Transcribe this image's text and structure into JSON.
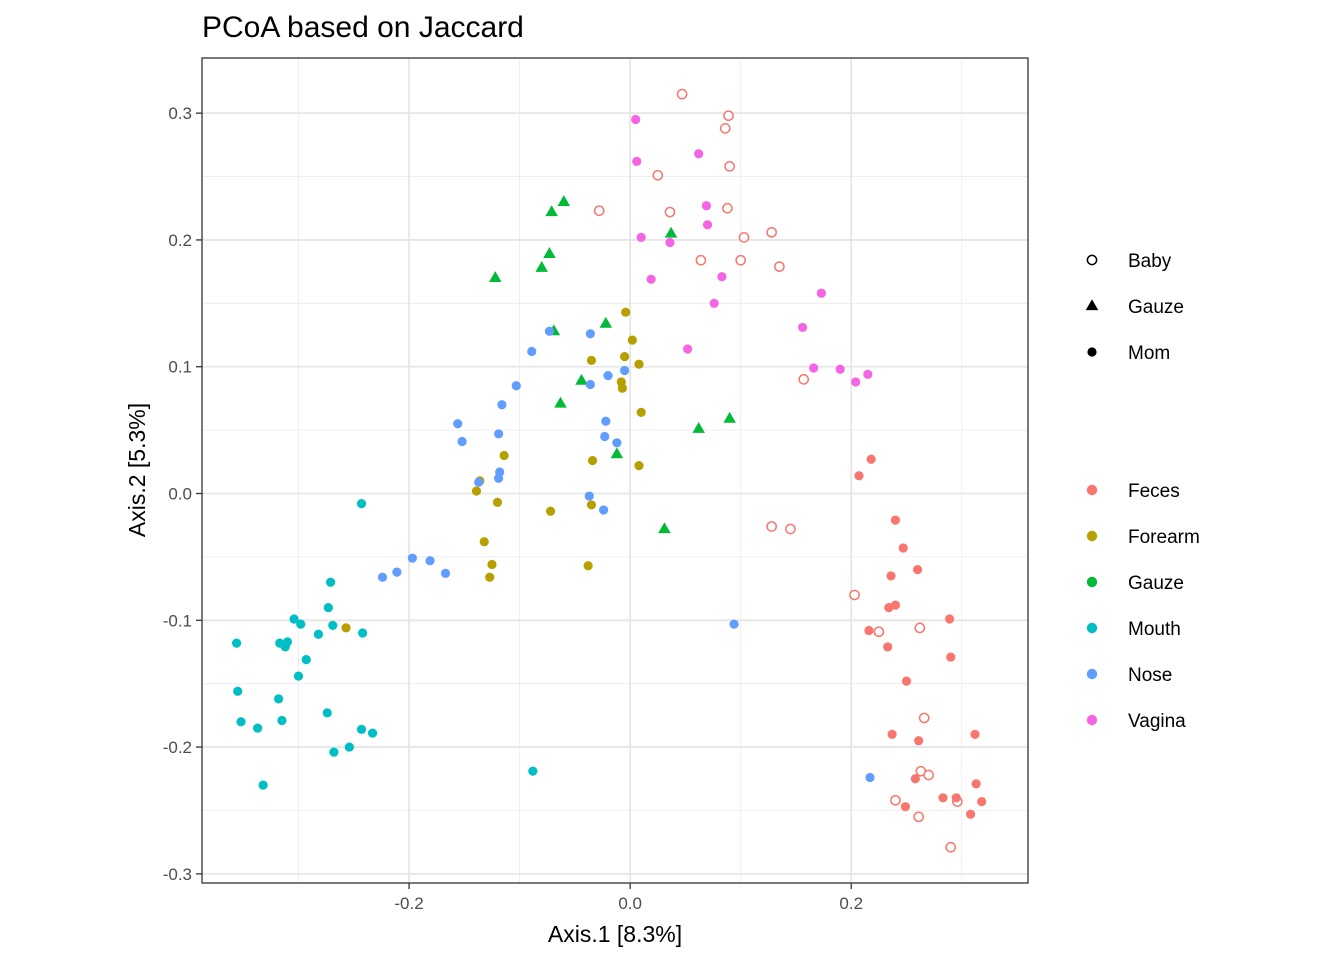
{
  "chart_data": {
    "type": "scatter",
    "title": "PCoA based on Jaccard",
    "xlabel": "Axis.1   [8.3%]",
    "ylabel": "Axis.2   [5.3%]",
    "xlim": [
      -0.3873,
      0.3599
    ],
    "ylim": [
      -0.3072,
      0.3435
    ],
    "xticks": [
      -0.2,
      0.0,
      0.2
    ],
    "xtick_labels": [
      "-0.2",
      "0.0",
      "0.2"
    ],
    "yticks": [
      -0.3,
      -0.2,
      -0.1,
      0.0,
      0.1,
      0.2,
      0.3
    ],
    "ytick_labels": [
      "-0.3",
      "-0.2",
      "-0.1",
      "0.0",
      "0.1",
      "0.2",
      "0.3"
    ],
    "grid": true,
    "shape_legend": {
      "placement": "right",
      "entries": [
        {
          "label": "Baby",
          "shape": "open-circle"
        },
        {
          "label": "Gauze",
          "shape": "triangle"
        },
        {
          "label": "Mom",
          "shape": "filled-circle"
        }
      ]
    },
    "color_legend": {
      "placement": "right",
      "entries": [
        {
          "label": "Feces",
          "color": "#F8766D"
        },
        {
          "label": "Forearm",
          "color": "#B79F00"
        },
        {
          "label": "Gauze",
          "color": "#00BA38"
        },
        {
          "label": "Mouth",
          "color": "#00BFC4"
        },
        {
          "label": "Nose",
          "color": "#619CFF"
        },
        {
          "label": "Vagina",
          "color": "#F564E3"
        }
      ]
    },
    "series": [
      {
        "name": "Feces",
        "color": "#F8766D",
        "points": [
          {
            "x": 0.047,
            "y": 0.315,
            "shape": "Baby"
          },
          {
            "x": 0.089,
            "y": 0.298,
            "shape": "Baby"
          },
          {
            "x": 0.086,
            "y": 0.288,
            "shape": "Baby"
          },
          {
            "x": 0.09,
            "y": 0.258,
            "shape": "Baby"
          },
          {
            "x": 0.025,
            "y": 0.251,
            "shape": "Baby"
          },
          {
            "x": -0.028,
            "y": 0.223,
            "shape": "Baby"
          },
          {
            "x": 0.036,
            "y": 0.222,
            "shape": "Baby"
          },
          {
            "x": 0.088,
            "y": 0.225,
            "shape": "Baby"
          },
          {
            "x": 0.128,
            "y": 0.206,
            "shape": "Baby"
          },
          {
            "x": 0.103,
            "y": 0.202,
            "shape": "Baby"
          },
          {
            "x": 0.064,
            "y": 0.184,
            "shape": "Baby"
          },
          {
            "x": 0.1,
            "y": 0.184,
            "shape": "Baby"
          },
          {
            "x": 0.135,
            "y": 0.179,
            "shape": "Baby"
          },
          {
            "x": 0.157,
            "y": 0.09,
            "shape": "Baby"
          },
          {
            "x": 0.128,
            "y": -0.026,
            "shape": "Baby"
          },
          {
            "x": 0.145,
            "y": -0.028,
            "shape": "Baby"
          },
          {
            "x": 0.203,
            "y": -0.08,
            "shape": "Baby"
          },
          {
            "x": 0.225,
            "y": -0.109,
            "shape": "Baby"
          },
          {
            "x": 0.262,
            "y": -0.106,
            "shape": "Baby"
          },
          {
            "x": 0.266,
            "y": -0.177,
            "shape": "Baby"
          },
          {
            "x": 0.263,
            "y": -0.219,
            "shape": "Baby"
          },
          {
            "x": 0.27,
            "y": -0.222,
            "shape": "Baby"
          },
          {
            "x": 0.24,
            "y": -0.242,
            "shape": "Baby"
          },
          {
            "x": 0.296,
            "y": -0.243,
            "shape": "Baby"
          },
          {
            "x": 0.261,
            "y": -0.255,
            "shape": "Baby"
          },
          {
            "x": 0.29,
            "y": -0.279,
            "shape": "Baby"
          },
          {
            "x": 0.218,
            "y": 0.027,
            "shape": "Mom"
          },
          {
            "x": 0.207,
            "y": 0.014,
            "shape": "Mom"
          },
          {
            "x": 0.24,
            "y": -0.021,
            "shape": "Mom"
          },
          {
            "x": 0.247,
            "y": -0.043,
            "shape": "Mom"
          },
          {
            "x": 0.26,
            "y": -0.06,
            "shape": "Mom"
          },
          {
            "x": 0.236,
            "y": -0.065,
            "shape": "Mom"
          },
          {
            "x": 0.24,
            "y": -0.088,
            "shape": "Mom"
          },
          {
            "x": 0.234,
            "y": -0.09,
            "shape": "Mom"
          },
          {
            "x": 0.216,
            "y": -0.108,
            "shape": "Mom"
          },
          {
            "x": 0.289,
            "y": -0.099,
            "shape": "Mom"
          },
          {
            "x": 0.233,
            "y": -0.121,
            "shape": "Mom"
          },
          {
            "x": 0.29,
            "y": -0.129,
            "shape": "Mom"
          },
          {
            "x": 0.25,
            "y": -0.148,
            "shape": "Mom"
          },
          {
            "x": 0.237,
            "y": -0.19,
            "shape": "Mom"
          },
          {
            "x": 0.261,
            "y": -0.195,
            "shape": "Mom"
          },
          {
            "x": 0.312,
            "y": -0.19,
            "shape": "Mom"
          },
          {
            "x": 0.258,
            "y": -0.225,
            "shape": "Mom"
          },
          {
            "x": 0.313,
            "y": -0.229,
            "shape": "Mom"
          },
          {
            "x": 0.283,
            "y": -0.24,
            "shape": "Mom"
          },
          {
            "x": 0.295,
            "y": -0.24,
            "shape": "Mom"
          },
          {
            "x": 0.318,
            "y": -0.243,
            "shape": "Mom"
          },
          {
            "x": 0.249,
            "y": -0.247,
            "shape": "Mom"
          },
          {
            "x": 0.308,
            "y": -0.253,
            "shape": "Mom"
          }
        ]
      },
      {
        "name": "Forearm",
        "color": "#B79F00",
        "points": [
          {
            "x": -0.004,
            "y": 0.143,
            "shape": "Mom"
          },
          {
            "x": 0.002,
            "y": 0.121,
            "shape": "Mom"
          },
          {
            "x": -0.035,
            "y": 0.105,
            "shape": "Mom"
          },
          {
            "x": -0.005,
            "y": 0.108,
            "shape": "Mom"
          },
          {
            "x": 0.008,
            "y": 0.102,
            "shape": "Mom"
          },
          {
            "x": -0.008,
            "y": 0.088,
            "shape": "Mom"
          },
          {
            "x": -0.007,
            "y": 0.083,
            "shape": "Mom"
          },
          {
            "x": 0.01,
            "y": 0.064,
            "shape": "Mom"
          },
          {
            "x": -0.114,
            "y": 0.03,
            "shape": "Mom"
          },
          {
            "x": -0.034,
            "y": 0.026,
            "shape": "Mom"
          },
          {
            "x": 0.008,
            "y": 0.022,
            "shape": "Mom"
          },
          {
            "x": -0.136,
            "y": 0.01,
            "shape": "Mom"
          },
          {
            "x": -0.139,
            "y": 0.002,
            "shape": "Mom"
          },
          {
            "x": -0.12,
            "y": -0.007,
            "shape": "Mom"
          },
          {
            "x": -0.035,
            "y": -0.009,
            "shape": "Mom"
          },
          {
            "x": -0.072,
            "y": -0.014,
            "shape": "Mom"
          },
          {
            "x": -0.132,
            "y": -0.038,
            "shape": "Mom"
          },
          {
            "x": -0.125,
            "y": -0.056,
            "shape": "Mom"
          },
          {
            "x": -0.038,
            "y": -0.057,
            "shape": "Mom"
          },
          {
            "x": -0.127,
            "y": -0.066,
            "shape": "Mom"
          },
          {
            "x": -0.257,
            "y": -0.106,
            "shape": "Mom"
          }
        ]
      },
      {
        "name": "Gauze",
        "color": "#00BA38",
        "points": [
          {
            "x": -0.06,
            "y": 0.23,
            "shape": "Gauze"
          },
          {
            "x": -0.071,
            "y": 0.222,
            "shape": "Gauze"
          },
          {
            "x": 0.037,
            "y": 0.205,
            "shape": "Gauze"
          },
          {
            "x": -0.073,
            "y": 0.189,
            "shape": "Gauze"
          },
          {
            "x": -0.08,
            "y": 0.178,
            "shape": "Gauze"
          },
          {
            "x": -0.122,
            "y": 0.17,
            "shape": "Gauze"
          },
          {
            "x": -0.022,
            "y": 0.134,
            "shape": "Gauze"
          },
          {
            "x": -0.069,
            "y": 0.128,
            "shape": "Gauze"
          },
          {
            "x": -0.044,
            "y": 0.089,
            "shape": "Gauze"
          },
          {
            "x": -0.063,
            "y": 0.071,
            "shape": "Gauze"
          },
          {
            "x": 0.09,
            "y": 0.059,
            "shape": "Gauze"
          },
          {
            "x": 0.062,
            "y": 0.051,
            "shape": "Gauze"
          },
          {
            "x": -0.012,
            "y": 0.031,
            "shape": "Gauze"
          },
          {
            "x": 0.031,
            "y": -0.028,
            "shape": "Gauze"
          }
        ]
      },
      {
        "name": "Mouth",
        "color": "#00BFC4",
        "points": [
          {
            "x": -0.243,
            "y": -0.008,
            "shape": "Mom"
          },
          {
            "x": -0.271,
            "y": -0.07,
            "shape": "Mom"
          },
          {
            "x": -0.273,
            "y": -0.09,
            "shape": "Mom"
          },
          {
            "x": -0.304,
            "y": -0.099,
            "shape": "Mom"
          },
          {
            "x": -0.298,
            "y": -0.103,
            "shape": "Mom"
          },
          {
            "x": -0.269,
            "y": -0.104,
            "shape": "Mom"
          },
          {
            "x": -0.282,
            "y": -0.111,
            "shape": "Mom"
          },
          {
            "x": -0.242,
            "y": -0.11,
            "shape": "Mom"
          },
          {
            "x": -0.356,
            "y": -0.118,
            "shape": "Mom"
          },
          {
            "x": -0.317,
            "y": -0.118,
            "shape": "Mom"
          },
          {
            "x": -0.31,
            "y": -0.117,
            "shape": "Mom"
          },
          {
            "x": -0.312,
            "y": -0.121,
            "shape": "Mom"
          },
          {
            "x": -0.293,
            "y": -0.131,
            "shape": "Mom"
          },
          {
            "x": -0.3,
            "y": -0.144,
            "shape": "Mom"
          },
          {
            "x": -0.355,
            "y": -0.156,
            "shape": "Mom"
          },
          {
            "x": -0.318,
            "y": -0.162,
            "shape": "Mom"
          },
          {
            "x": -0.274,
            "y": -0.173,
            "shape": "Mom"
          },
          {
            "x": -0.352,
            "y": -0.18,
            "shape": "Mom"
          },
          {
            "x": -0.315,
            "y": -0.179,
            "shape": "Mom"
          },
          {
            "x": -0.337,
            "y": -0.185,
            "shape": "Mom"
          },
          {
            "x": -0.243,
            "y": -0.186,
            "shape": "Mom"
          },
          {
            "x": -0.233,
            "y": -0.189,
            "shape": "Mom"
          },
          {
            "x": -0.254,
            "y": -0.2,
            "shape": "Mom"
          },
          {
            "x": -0.268,
            "y": -0.204,
            "shape": "Mom"
          },
          {
            "x": -0.088,
            "y": -0.219,
            "shape": "Mom"
          },
          {
            "x": -0.332,
            "y": -0.23,
            "shape": "Mom"
          }
        ]
      },
      {
        "name": "Nose",
        "color": "#619CFF",
        "points": [
          {
            "x": -0.073,
            "y": 0.128,
            "shape": "Mom"
          },
          {
            "x": -0.036,
            "y": 0.126,
            "shape": "Mom"
          },
          {
            "x": -0.089,
            "y": 0.112,
            "shape": "Mom"
          },
          {
            "x": -0.02,
            "y": 0.093,
            "shape": "Mom"
          },
          {
            "x": -0.005,
            "y": 0.097,
            "shape": "Mom"
          },
          {
            "x": -0.036,
            "y": 0.086,
            "shape": "Mom"
          },
          {
            "x": -0.103,
            "y": 0.085,
            "shape": "Mom"
          },
          {
            "x": -0.116,
            "y": 0.07,
            "shape": "Mom"
          },
          {
            "x": -0.156,
            "y": 0.055,
            "shape": "Mom"
          },
          {
            "x": -0.022,
            "y": 0.057,
            "shape": "Mom"
          },
          {
            "x": -0.119,
            "y": 0.047,
            "shape": "Mom"
          },
          {
            "x": -0.023,
            "y": 0.045,
            "shape": "Mom"
          },
          {
            "x": -0.152,
            "y": 0.041,
            "shape": "Mom"
          },
          {
            "x": -0.012,
            "y": 0.04,
            "shape": "Mom"
          },
          {
            "x": -0.118,
            "y": 0.017,
            "shape": "Mom"
          },
          {
            "x": -0.119,
            "y": 0.012,
            "shape": "Mom"
          },
          {
            "x": -0.137,
            "y": 0.009,
            "shape": "Mom"
          },
          {
            "x": -0.037,
            "y": -0.002,
            "shape": "Mom"
          },
          {
            "x": -0.024,
            "y": -0.013,
            "shape": "Mom"
          },
          {
            "x": -0.197,
            "y": -0.051,
            "shape": "Mom"
          },
          {
            "x": -0.181,
            "y": -0.053,
            "shape": "Mom"
          },
          {
            "x": -0.211,
            "y": -0.062,
            "shape": "Mom"
          },
          {
            "x": -0.167,
            "y": -0.063,
            "shape": "Mom"
          },
          {
            "x": -0.224,
            "y": -0.066,
            "shape": "Mom"
          },
          {
            "x": 0.094,
            "y": -0.103,
            "shape": "Mom"
          },
          {
            "x": 0.217,
            "y": -0.224,
            "shape": "Mom"
          }
        ]
      },
      {
        "name": "Vagina",
        "color": "#F564E3",
        "points": [
          {
            "x": 0.005,
            "y": 0.295,
            "shape": "Mom"
          },
          {
            "x": 0.062,
            "y": 0.268,
            "shape": "Mom"
          },
          {
            "x": 0.006,
            "y": 0.262,
            "shape": "Mom"
          },
          {
            "x": 0.069,
            "y": 0.227,
            "shape": "Mom"
          },
          {
            "x": 0.07,
            "y": 0.212,
            "shape": "Mom"
          },
          {
            "x": 0.01,
            "y": 0.202,
            "shape": "Mom"
          },
          {
            "x": 0.036,
            "y": 0.198,
            "shape": "Mom"
          },
          {
            "x": 0.083,
            "y": 0.171,
            "shape": "Mom"
          },
          {
            "x": 0.019,
            "y": 0.169,
            "shape": "Mom"
          },
          {
            "x": 0.173,
            "y": 0.158,
            "shape": "Mom"
          },
          {
            "x": 0.076,
            "y": 0.15,
            "shape": "Mom"
          },
          {
            "x": 0.156,
            "y": 0.131,
            "shape": "Mom"
          },
          {
            "x": 0.052,
            "y": 0.114,
            "shape": "Mom"
          },
          {
            "x": 0.166,
            "y": 0.099,
            "shape": "Mom"
          },
          {
            "x": 0.19,
            "y": 0.098,
            "shape": "Mom"
          },
          {
            "x": 0.215,
            "y": 0.094,
            "shape": "Mom"
          },
          {
            "x": 0.204,
            "y": 0.088,
            "shape": "Mom"
          }
        ]
      }
    ]
  }
}
